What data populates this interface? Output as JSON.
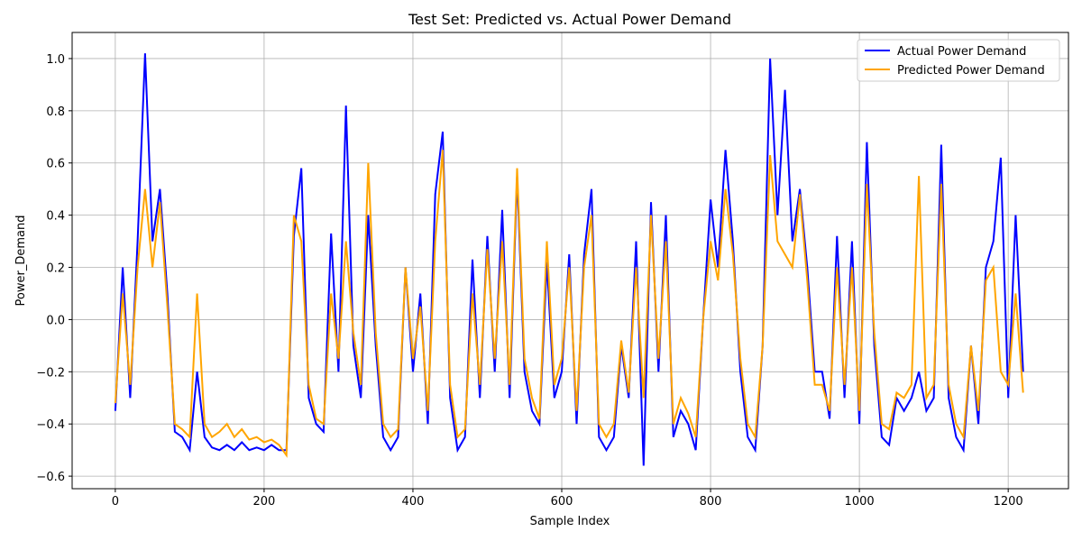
{
  "chart_data": {
    "type": "line",
    "title": "Test Set: Predicted vs. Actual Power Demand",
    "x_label": "Sample Index",
    "y_label": "Power_Demand",
    "xlim": [
      -58,
      1281
    ],
    "ylim": [
      -0.648,
      1.1
    ],
    "xticks": [
      0,
      200,
      400,
      600,
      800,
      1000,
      1200
    ],
    "yticks": [
      {
        "value": -0.6,
        "label": "−0.6"
      },
      {
        "value": -0.4,
        "label": "−0.4"
      },
      {
        "value": -0.2,
        "label": "−0.2"
      },
      {
        "value": 0,
        "label": "0.0"
      },
      {
        "value": 0.2,
        "label": "0.2"
      },
      {
        "value": 0.4,
        "label": "0.4"
      },
      {
        "value": 0.6,
        "label": "0.6"
      },
      {
        "value": 0.8,
        "label": "0.8"
      },
      {
        "value": 1,
        "label": "1.0"
      }
    ],
    "grid": true,
    "legend": "upper right",
    "x": [
      0,
      10,
      20,
      30,
      40,
      50,
      60,
      70,
      80,
      90,
      100,
      110,
      120,
      130,
      140,
      150,
      160,
      170,
      180,
      190,
      200,
      210,
      220,
      230,
      240,
      250,
      260,
      270,
      280,
      290,
      300,
      310,
      320,
      330,
      340,
      350,
      360,
      370,
      380,
      390,
      400,
      410,
      420,
      430,
      440,
      450,
      460,
      470,
      480,
      490,
      500,
      510,
      520,
      530,
      540,
      550,
      560,
      570,
      580,
      590,
      600,
      610,
      620,
      630,
      640,
      650,
      660,
      670,
      680,
      690,
      700,
      710,
      720,
      730,
      740,
      750,
      760,
      770,
      780,
      790,
      800,
      810,
      820,
      830,
      840,
      850,
      860,
      870,
      880,
      890,
      900,
      910,
      920,
      930,
      940,
      950,
      960,
      970,
      980,
      990,
      1000,
      1010,
      1020,
      1030,
      1040,
      1050,
      1060,
      1070,
      1080,
      1090,
      1100,
      1110,
      1120,
      1130,
      1140,
      1150,
      1160,
      1170,
      1180,
      1190,
      1200,
      1210,
      1220
    ],
    "series": [
      {
        "name": "Actual Power Demand",
        "color": "#0000ff",
        "values": [
          -0.35,
          0.2,
          -0.3,
          0.3,
          1.02,
          0.3,
          0.5,
          0.1,
          -0.43,
          -0.45,
          -0.5,
          -0.2,
          -0.45,
          -0.49,
          -0.5,
          -0.48,
          -0.5,
          -0.47,
          -0.5,
          -0.49,
          -0.5,
          -0.48,
          -0.5,
          -0.5,
          0.32,
          0.58,
          -0.3,
          -0.4,
          -0.43,
          0.33,
          -0.2,
          0.82,
          -0.1,
          -0.3,
          0.4,
          -0.1,
          -0.45,
          -0.5,
          -0.45,
          0.2,
          -0.2,
          0.1,
          -0.4,
          0.48,
          0.72,
          -0.3,
          -0.5,
          -0.45,
          0.23,
          -0.3,
          0.32,
          -0.2,
          0.42,
          -0.3,
          0.55,
          -0.2,
          -0.35,
          -0.4,
          0.22,
          -0.3,
          -0.2,
          0.25,
          -0.4,
          0.25,
          0.5,
          -0.45,
          -0.5,
          -0.45,
          -0.1,
          -0.3,
          0.3,
          -0.56,
          0.45,
          -0.2,
          0.4,
          -0.45,
          -0.35,
          -0.4,
          -0.5,
          0.0,
          0.46,
          0.2,
          0.65,
          0.3,
          -0.2,
          -0.45,
          -0.5,
          -0.1,
          1.0,
          0.4,
          0.88,
          0.3,
          0.5,
          0.2,
          -0.2,
          -0.2,
          -0.38,
          0.32,
          -0.3,
          0.3,
          -0.4,
          0.68,
          -0.1,
          -0.45,
          -0.48,
          -0.3,
          -0.35,
          -0.3,
          -0.2,
          -0.35,
          -0.3,
          0.67,
          -0.3,
          -0.45,
          -0.5,
          -0.1,
          -0.4,
          0.2,
          0.3,
          0.62,
          -0.3,
          0.4,
          -0.2
        ]
      },
      {
        "name": "Predicted Power Demand",
        "color": "#ffa500",
        "values": [
          -0.32,
          0.1,
          -0.25,
          0.2,
          0.5,
          0.2,
          0.45,
          0.05,
          -0.4,
          -0.42,
          -0.45,
          0.1,
          -0.4,
          -0.45,
          -0.43,
          -0.4,
          -0.45,
          -0.42,
          -0.46,
          -0.45,
          -0.47,
          -0.46,
          -0.48,
          -0.52,
          0.4,
          0.3,
          -0.25,
          -0.38,
          -0.4,
          0.1,
          -0.15,
          0.3,
          -0.05,
          -0.25,
          0.6,
          -0.05,
          -0.4,
          -0.45,
          -0.42,
          0.2,
          -0.15,
          0.05,
          -0.35,
          0.3,
          0.65,
          -0.25,
          -0.45,
          -0.42,
          0.1,
          -0.25,
          0.27,
          -0.15,
          0.3,
          -0.25,
          0.58,
          -0.15,
          -0.3,
          -0.38,
          0.3,
          -0.25,
          -0.15,
          0.2,
          -0.35,
          0.2,
          0.4,
          -0.4,
          -0.45,
          -0.4,
          -0.08,
          -0.28,
          0.2,
          -0.3,
          0.4,
          -0.15,
          0.3,
          -0.4,
          -0.3,
          -0.36,
          -0.45,
          0.0,
          0.3,
          0.15,
          0.5,
          0.25,
          -0.15,
          -0.4,
          -0.45,
          -0.1,
          0.63,
          0.3,
          0.25,
          0.2,
          0.48,
          0.15,
          -0.25,
          -0.25,
          -0.35,
          0.2,
          -0.25,
          0.2,
          -0.35,
          0.52,
          -0.05,
          -0.4,
          -0.42,
          -0.28,
          -0.3,
          -0.25,
          0.55,
          -0.3,
          -0.25,
          0.52,
          -0.25,
          -0.4,
          -0.45,
          -0.1,
          -0.35,
          0.15,
          0.2,
          -0.2,
          -0.25,
          0.1,
          -0.28
        ]
      }
    ]
  }
}
